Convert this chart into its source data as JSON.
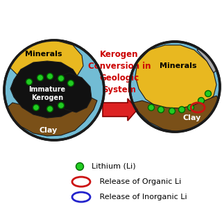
{
  "bg_color": "#ffffff",
  "circle_outline": "#1a1a1a",
  "circle_lw": 2.5,
  "mineral_color": "#e8b820",
  "clay_color": "#7a5018",
  "kerogen_color": "#111111",
  "pore_water_color": "#72bcd4",
  "gray_color": "#aaaaaa",
  "li_dot_color": "#22cc22",
  "li_dot_edge": "#006600",
  "organic_ring_color": "#cc1111",
  "inorganic_ring_color": "#2222cc",
  "arrow_color": "#dd2222",
  "arrow_edge": "#880000",
  "title_text": "Kerogen\nConversion in\nGeologic\nSystem",
  "title_color": "#cc0000",
  "title_fontsize": 8.5,
  "legend_li_text": "  Lithium (Li)",
  "legend_organic_text": "   Release of Organic Li",
  "legend_inorganic_text": "   Release of Inorganic Li",
  "label_minerals_left": "Minerals",
  "label_kerogen": "Immature\nKerogen",
  "label_clay_left": "Clay",
  "label_minerals_right": "Minerals",
  "label_clay_right": "Clay",
  "figsize": [
    3.2,
    3.2
  ],
  "dpi": 100
}
